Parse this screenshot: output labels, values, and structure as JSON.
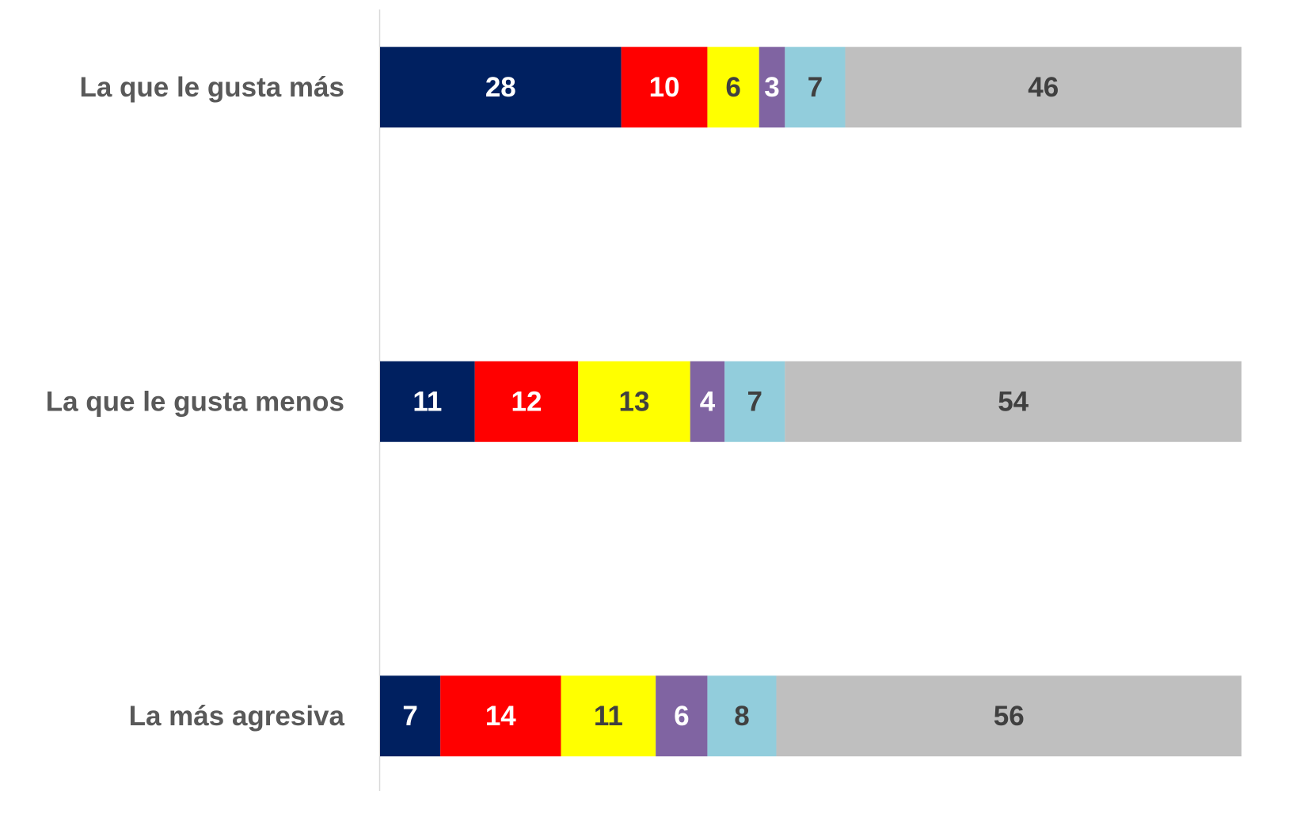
{
  "chart_data": {
    "type": "stacked_barh",
    "categories": [
      "La que le gusta más",
      "La que le gusta menos",
      "La más agresiva"
    ],
    "series": [
      {
        "color": "#002060",
        "label_color": "#ffffff",
        "values": [
          28,
          11,
          7
        ]
      },
      {
        "color": "#ff0000",
        "label_color": "#ffffff",
        "values": [
          10,
          12,
          14
        ]
      },
      {
        "color": "#ffff00",
        "label_color": "#404040",
        "values": [
          6,
          13,
          11
        ]
      },
      {
        "color": "#8064a2",
        "label_color": "#ffffff",
        "values": [
          3,
          4,
          6
        ]
      },
      {
        "color": "#92cddc",
        "label_color": "#404040",
        "values": [
          7,
          7,
          8
        ]
      },
      {
        "color": "#bfbfbf",
        "label_color": "#404040",
        "values": [
          46,
          54,
          56
        ]
      }
    ],
    "xlim": [
      0,
      100
    ]
  }
}
